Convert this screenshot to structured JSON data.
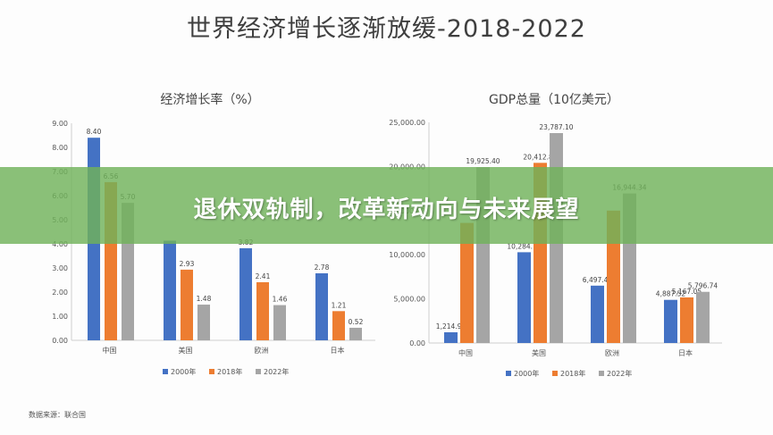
{
  "page": {
    "main_title": "世界经济增长逐渐放缓-2018-2022",
    "banner_text": "退休双轨制，改革新动向与未来展望",
    "source": "数据来源：联合国"
  },
  "colors": {
    "series": [
      "#4472c4",
      "#ed7d31",
      "#a5a5a5"
    ],
    "banner": "#70b25a"
  },
  "chart_data": [
    {
      "type": "bar",
      "title": "经济增长率（%）",
      "categories": [
        "中国",
        "美国",
        "欧洲",
        "日本"
      ],
      "series": [
        {
          "name": "2000年",
          "values": [
            8.4,
            4.13,
            3.82,
            2.78
          ],
          "labels": [
            "8.40",
            "",
            "3.82",
            "2.78"
          ]
        },
        {
          "name": "2018年",
          "values": [
            6.56,
            2.93,
            2.41,
            1.21
          ],
          "labels": [
            "6.56",
            "2.93",
            "2.41",
            "1.21"
          ]
        },
        {
          "name": "2022年",
          "values": [
            5.7,
            1.48,
            1.46,
            0.52
          ],
          "labels": [
            "5.70",
            "1.48",
            "1.46",
            "0.52"
          ]
        }
      ],
      "ylim": [
        0,
        9
      ],
      "yticks": [
        "0.00",
        "1.00",
        "2.00",
        "3.00",
        "4.00",
        "5.00",
        "6.00",
        "7.00",
        "8.00",
        "9.00"
      ],
      "legend_position": "bottom"
    },
    {
      "type": "bar",
      "title": "GDP总量（10亿美元）",
      "categories": [
        "中国",
        "美国",
        "欧洲",
        "日本"
      ],
      "series": [
        {
          "name": "2000年",
          "values": [
            1214.92,
            10284.75,
            6497.43,
            4887.52
          ],
          "labels": [
            "1,214.92",
            "10,284.75",
            "6,497.43",
            "4,887.52"
          ]
        },
        {
          "name": "2018年",
          "values": [
            13608.15,
            20412.87,
            15000.0,
            5167.05
          ],
          "labels": [
            "",
            "20,412.87",
            "",
            "5,167.05"
          ]
        },
        {
          "name": "2022年",
          "values": [
            19925.4,
            23787.1,
            16944.34,
            5796.74
          ],
          "labels": [
            "19,925.40",
            "23,787.10",
            "16,944.34",
            "5,796.74"
          ]
        }
      ],
      "ylim": [
        0,
        25000
      ],
      "yticks": [
        "0.00",
        "5,000.00",
        "10,000.00",
        "15,000.00",
        "20,000.00",
        "25,000.00"
      ],
      "legend_position": "bottom"
    }
  ]
}
